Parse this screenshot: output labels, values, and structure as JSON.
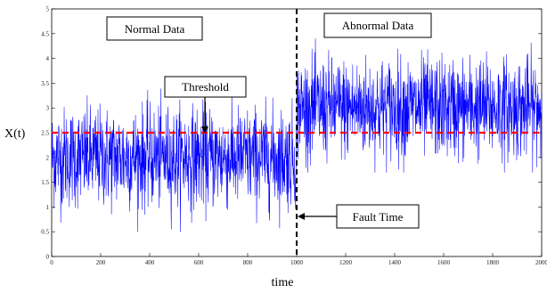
{
  "chart_data": {
    "type": "line",
    "xlabel": "time",
    "ylabel": "X(t)",
    "xlim": [
      0,
      2000
    ],
    "ylim": [
      0,
      5
    ],
    "x_ticks": [
      0,
      200,
      400,
      600,
      800,
      1000,
      1200,
      1400,
      1600,
      1800,
      2000
    ],
    "y_ticks": [
      0,
      0.5,
      1,
      1.5,
      2,
      2.5,
      3,
      3.5,
      4,
      4.5,
      5
    ],
    "series": [
      {
        "color": "#0000ff",
        "n_points": 2000,
        "segments": [
          {
            "x_start": 0,
            "x_end": 1000,
            "mean": 2.0,
            "sd": 0.5,
            "min": 0.5,
            "max": 3.8
          },
          {
            "x_start": 1000,
            "x_end": 2000,
            "mean": 3.0,
            "sd": 0.5,
            "min": 1.7,
            "max": 4.4
          }
        ]
      }
    ],
    "threshold": {
      "y": 2.5,
      "color": "#ff0000",
      "style": "dashed"
    },
    "fault_line": {
      "x": 1000,
      "color": "#000000",
      "style": "dashed"
    },
    "grid": false,
    "annotations": {
      "normal": "Normal Data",
      "abnormal": "Abnormal Data",
      "threshold": "Threshold",
      "fault": "Fault Time"
    }
  }
}
